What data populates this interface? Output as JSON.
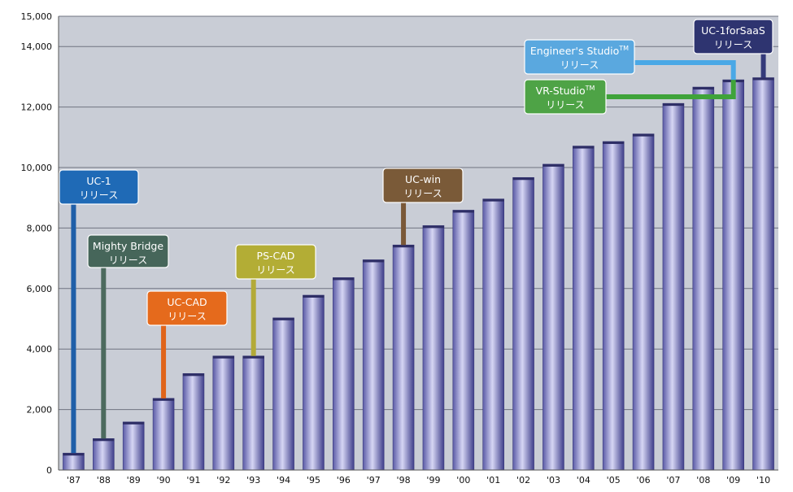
{
  "chart_data": {
    "type": "bar",
    "categories": [
      "'87",
      "'88",
      "'89",
      "'90",
      "'91",
      "'92",
      "'93",
      "'94",
      "'95",
      "'96",
      "'97",
      "'98",
      "'99",
      "'00",
      "'01",
      "'02",
      "'03",
      "'04",
      "'05",
      "'06",
      "'07",
      "'08",
      "'09",
      "'10"
    ],
    "values": [
      560,
      1040,
      1590,
      2370,
      3190,
      3770,
      3770,
      5030,
      5780,
      6360,
      6950,
      7440,
      8080,
      8590,
      8960,
      9670,
      10110,
      10710,
      10860,
      11110,
      12120,
      12660,
      12900,
      12970
    ],
    "ylim": [
      0,
      15000
    ],
    "yticks": [
      "0",
      "2,000",
      "4,000",
      "6,000",
      "8,000",
      "10,000",
      "12,000",
      "14,000",
      "15,000"
    ],
    "ytick_values": [
      0,
      2000,
      4000,
      6000,
      8000,
      10000,
      12000,
      14000,
      15000
    ],
    "grid": true,
    "plot_background": "#c9cdd6",
    "bar_color_dark": "#4a4a96",
    "bar_color_light": "#d4d4f2",
    "annotations": [
      {
        "line1": "UC-1",
        "sup": "",
        "line2": "リリース",
        "year_index": 0,
        "color": "#1f6ab6",
        "line_color": "#1f5fa8"
      },
      {
        "line1": "Mighty Bridge",
        "sup": "",
        "line2": "リリース",
        "year_index": 1,
        "color": "#46665a",
        "line_color": "#4c6a5e"
      },
      {
        "line1": "UC-CAD",
        "sup": "",
        "line2": "リリース",
        "year_index": 3,
        "color": "#e56a1c",
        "line_color": "#e0641a"
      },
      {
        "line1": "PS-CAD",
        "sup": "",
        "line2": "リリース",
        "year_index": 6,
        "color": "#b3ad35",
        "line_color": "#b3aa38"
      },
      {
        "line1": "UC-win",
        "sup": "",
        "line2": "リリース",
        "year_index": 11,
        "color": "#7a5a38",
        "line_color": "#7a5838"
      },
      {
        "line1": "VR-Studio",
        "sup": "TM",
        "line2": "リリース",
        "year_index": 22,
        "color": "#4ea346",
        "line_color": "#3fa33a"
      },
      {
        "line1": "Engineer's Studio",
        "sup": "TM",
        "line2": "リリース",
        "year_index": 22,
        "color": "#5aa8df",
        "line_color": "#4aa8e6"
      },
      {
        "line1": "UC-1forSaaS",
        "sup": "",
        "line2": "リリース",
        "year_index": 23,
        "color": "#2e3470",
        "line_color": "#343a7a"
      }
    ]
  }
}
